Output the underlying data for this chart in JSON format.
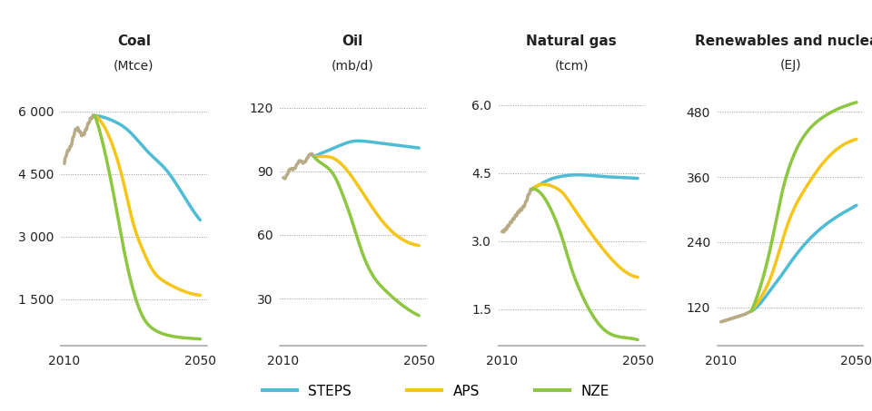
{
  "panels": [
    {
      "title": "Coal",
      "unit": "(Mtce)",
      "ytick_vals": [
        1500,
        3000,
        4500,
        6000
      ],
      "ytick_labels": [
        "1 500",
        "3 000",
        "4 500",
        "6 000"
      ],
      "ylim": [
        400,
        6700
      ],
      "xlim": [
        2009,
        2052
      ],
      "historical": {
        "x": [
          2010,
          2011,
          2012,
          2013,
          2014,
          2015,
          2016,
          2017,
          2018,
          2019
        ],
        "y": [
          4750,
          5050,
          5200,
          5500,
          5580,
          5450,
          5500,
          5700,
          5850,
          5900
        ]
      },
      "steps": {
        "x": [
          2019,
          2022,
          2025,
          2028,
          2030,
          2035,
          2040,
          2045,
          2050
        ],
        "y": [
          5900,
          5850,
          5750,
          5600,
          5450,
          5000,
          4600,
          4000,
          3400
        ]
      },
      "aps": {
        "x": [
          2019,
          2022,
          2025,
          2028,
          2030,
          2033,
          2036,
          2040,
          2045,
          2050
        ],
        "y": [
          5900,
          5600,
          5000,
          4100,
          3400,
          2700,
          2200,
          1900,
          1700,
          1600
        ]
      },
      "nze": {
        "x": [
          2019,
          2022,
          2025,
          2028,
          2030,
          2033,
          2036,
          2040,
          2045,
          2050
        ],
        "y": [
          5900,
          5000,
          3800,
          2500,
          1800,
          1100,
          800,
          650,
          580,
          550
        ]
      }
    },
    {
      "title": "Oil",
      "unit": "(mb/d)",
      "ytick_vals": [
        30,
        60,
        90,
        120
      ],
      "ytick_labels": [
        "30",
        "60",
        "90",
        "120"
      ],
      "ylim": [
        8,
        132
      ],
      "xlim": [
        2009,
        2052
      ],
      "historical": {
        "x": [
          2010,
          2011,
          2012,
          2013,
          2014,
          2015,
          2016,
          2017,
          2018,
          2019
        ],
        "y": [
          87,
          88,
          91,
          91,
          93,
          95,
          94,
          96,
          98,
          97
        ]
      },
      "steps": {
        "x": [
          2019,
          2022,
          2025,
          2028,
          2030,
          2035,
          2040,
          2045,
          2050
        ],
        "y": [
          97,
          99,
          101,
          103,
          104,
          104,
          103,
          102,
          101
        ]
      },
      "aps": {
        "x": [
          2019,
          2022,
          2025,
          2028,
          2030,
          2035,
          2040,
          2045,
          2050
        ],
        "y": [
          97,
          97,
          96,
          92,
          88,
          76,
          65,
          58,
          55
        ]
      },
      "nze": {
        "x": [
          2019,
          2022,
          2025,
          2028,
          2030,
          2033,
          2036,
          2040,
          2045,
          2050
        ],
        "y": [
          97,
          93,
          88,
          77,
          68,
          53,
          42,
          34,
          27,
          22
        ]
      }
    },
    {
      "title": "Natural gas",
      "unit": "(tcm)",
      "ytick_vals": [
        1.5,
        3.0,
        4.5,
        6.0
      ],
      "ytick_labels": [
        "1.5",
        "3.0",
        "4.5",
        "6.0"
      ],
      "ylim": [
        0.7,
        6.5
      ],
      "xlim": [
        2009,
        2052
      ],
      "historical": {
        "x": [
          2010,
          2011,
          2012,
          2013,
          2014,
          2015,
          2016,
          2017,
          2018,
          2019
        ],
        "y": [
          3.2,
          3.25,
          3.35,
          3.45,
          3.55,
          3.65,
          3.72,
          3.85,
          4.05,
          4.15
        ]
      },
      "steps": {
        "x": [
          2019,
          2022,
          2025,
          2028,
          2030,
          2035,
          2040,
          2045,
          2050
        ],
        "y": [
          4.15,
          4.28,
          4.38,
          4.43,
          4.45,
          4.45,
          4.42,
          4.4,
          4.38
        ]
      },
      "aps": {
        "x": [
          2019,
          2022,
          2025,
          2028,
          2030,
          2035,
          2040,
          2045,
          2050
        ],
        "y": [
          4.15,
          4.25,
          4.2,
          4.05,
          3.85,
          3.3,
          2.8,
          2.4,
          2.2
        ]
      },
      "nze": {
        "x": [
          2019,
          2022,
          2025,
          2028,
          2030,
          2033,
          2036,
          2040,
          2045,
          2050
        ],
        "y": [
          4.15,
          4.0,
          3.6,
          3.0,
          2.5,
          1.9,
          1.45,
          1.05,
          0.88,
          0.82
        ]
      }
    },
    {
      "title": "Renewables and nuclear",
      "unit": "(EJ)",
      "ytick_vals": [
        120,
        240,
        360,
        480
      ],
      "ytick_labels": [
        "120",
        "240",
        "360",
        "480"
      ],
      "ylim": [
        50,
        535
      ],
      "xlim": [
        2009,
        2052
      ],
      "historical": {
        "x": [
          2010,
          2011,
          2012,
          2013,
          2014,
          2015,
          2016,
          2017,
          2018,
          2019
        ],
        "y": [
          93,
          95,
          97,
          99,
          101,
          103,
          105,
          107,
          110,
          113
        ]
      },
      "steps": {
        "x": [
          2019,
          2022,
          2025,
          2028,
          2030,
          2035,
          2040,
          2045,
          2050
        ],
        "y": [
          113,
          130,
          155,
          180,
          198,
          238,
          268,
          290,
          308
        ]
      },
      "aps": {
        "x": [
          2019,
          2022,
          2025,
          2028,
          2030,
          2035,
          2040,
          2045,
          2050
        ],
        "y": [
          113,
          140,
          180,
          240,
          278,
          340,
          385,
          415,
          430
        ]
      },
      "nze": {
        "x": [
          2019,
          2022,
          2025,
          2028,
          2030,
          2035,
          2040,
          2045,
          2050
        ],
        "y": [
          113,
          165,
          240,
          330,
          375,
          440,
          470,
          487,
          498
        ]
      }
    }
  ],
  "colors": {
    "historical": "#b8aa85",
    "steps": "#4dbcd4",
    "aps": "#f5c518",
    "nze": "#8dc63f"
  },
  "legend": [
    {
      "label": "STEPS",
      "color": "#4dbcd4"
    },
    {
      "label": "APS",
      "color": "#f5c518"
    },
    {
      "label": "NZE",
      "color": "#8dc63f"
    }
  ],
  "background": "#ffffff",
  "linewidth": 2.5,
  "xticks": [
    2010,
    2050
  ],
  "grid_color": "#999999",
  "grid_lw": 0.7,
  "spine_color": "#aaaaaa"
}
